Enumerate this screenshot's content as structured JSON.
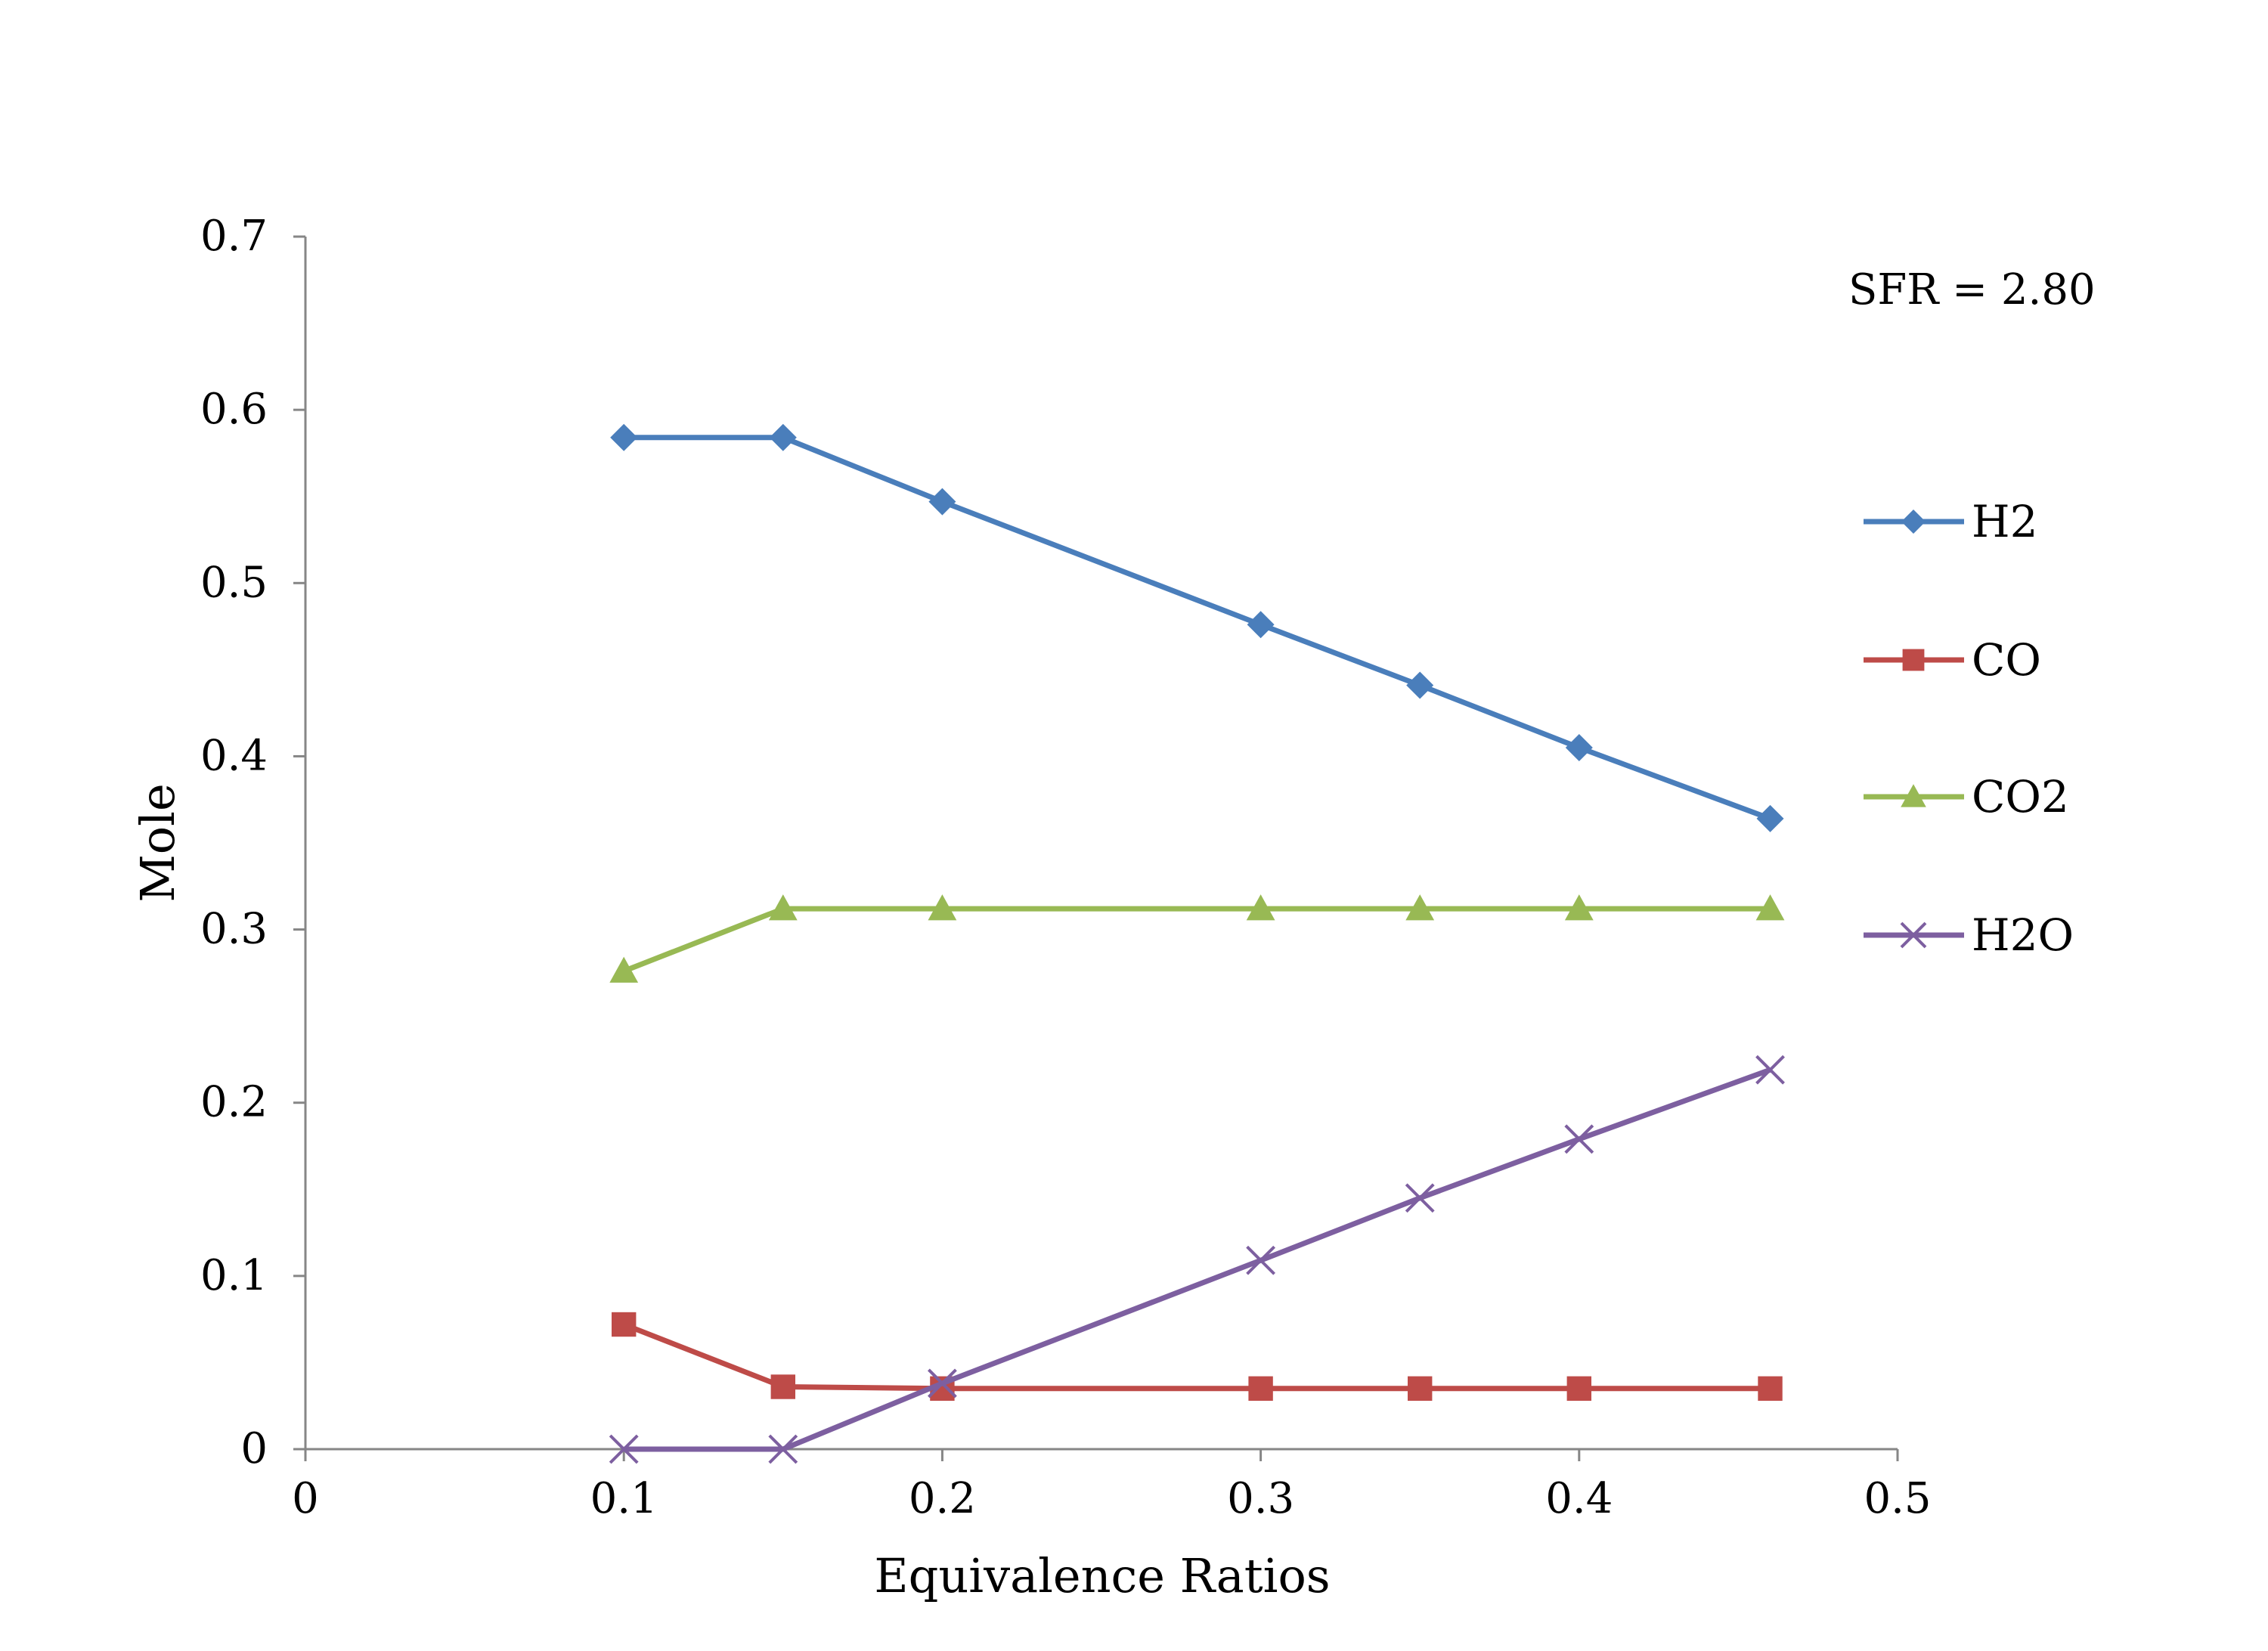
{
  "chart_data": {
    "type": "line",
    "xlabel": "Equivalence Ratios",
    "ylabel": "Mole",
    "xlim": [
      0,
      0.5
    ],
    "ylim": [
      0,
      0.7
    ],
    "x_ticks": [
      0,
      0.1,
      0.2,
      0.3,
      0.4,
      0.5
    ],
    "x_tick_labels": [
      "0",
      "0.1",
      "0.2",
      "0.3",
      "0.4",
      "0.5"
    ],
    "y_ticks": [
      0,
      0.1,
      0.2,
      0.3,
      0.4,
      0.5,
      0.6,
      0.7
    ],
    "y_tick_labels": [
      "0",
      "0.1",
      "0.2",
      "0.3",
      "0.4",
      "0.5",
      "0.6",
      "0.7"
    ],
    "grid": false,
    "legend": "right",
    "annotation": "SFR = 2.80",
    "x": [
      0.1,
      0.15,
      0.2,
      0.3,
      0.35,
      0.4,
      0.46
    ],
    "series": [
      {
        "name": "H2",
        "values": [
          0.584,
          0.584,
          0.547,
          0.476,
          0.441,
          0.405,
          0.364
        ],
        "color": "#4a7ebb",
        "marker": "diamond"
      },
      {
        "name": "CO",
        "values": [
          0.072,
          0.036,
          0.035,
          0.035,
          0.035,
          0.035,
          0.035
        ],
        "color": "#be4b48",
        "marker": "square"
      },
      {
        "name": "CO2",
        "values": [
          0.276,
          0.312,
          0.312,
          0.312,
          0.312,
          0.312,
          0.312
        ],
        "color": "#98b954",
        "marker": "triangle"
      },
      {
        "name": "H2O",
        "values": [
          0.0,
          0.0,
          0.038,
          0.109,
          0.145,
          0.179,
          0.219
        ],
        "color": "#7d5fa0",
        "marker": "x"
      }
    ]
  }
}
